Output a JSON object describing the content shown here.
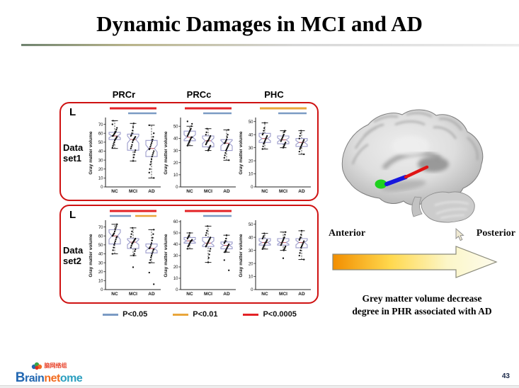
{
  "slide": {
    "title": "Dynamic Damages in MCI and AD",
    "page_number": "43"
  },
  "column_headers": [
    "PRCr",
    "PRCc",
    "PHC"
  ],
  "colors": {
    "sig_red": "#e32226",
    "sig_blue": "#7b9bc4",
    "sig_orange": "#e9a63b",
    "box_outline": "#9b9bcb",
    "median": "#c46a74",
    "panel_border": "#cf1212"
  },
  "legend": [
    {
      "label": "P<0.05",
      "color_key": "sig_blue"
    },
    {
      "label": "P<0.01",
      "color_key": "sig_orange"
    },
    {
      "label": "P<0.0005",
      "color_key": "sig_red"
    }
  ],
  "right_panel": {
    "anterior_label": "Anterior",
    "posterior_label": "Posterior",
    "caption_line1": "Grey matter volume decrease",
    "caption_line2": "degree in PHR associated with AD"
  },
  "logo": {
    "brain": "Brain",
    "net": "net",
    "ome": "ome",
    "chinese": "脑网络组"
  },
  "chart_data": {
    "type": "boxplot-grid",
    "ylabel": "Gray matter volume",
    "categories": [
      "NC",
      "MCI",
      "AD"
    ],
    "rows": [
      {
        "corner": "L",
        "label_line1": "Data",
        "label_line2": "set1",
        "plots": [
          {
            "region": "PRCr",
            "ylim": [
              0,
              76
            ],
            "yticks": [
              0,
              10,
              20,
              30,
              40,
              50,
              60,
              70
            ],
            "sig": [
              {
                "color": "sig_red",
                "from": 0,
                "to": 2,
                "level": 0
              },
              {
                "color": "sig_blue",
                "from": 1,
                "to": 2,
                "level": 1
              }
            ],
            "groups": [
              {
                "label": "NC",
                "whisker_low": 43,
                "q1": 53,
                "median": 57,
                "q3": 61,
                "whisker_high": 74,
                "points": [
                  44,
                  46,
                  48,
                  50,
                  52,
                  53,
                  54,
                  55,
                  56,
                  57,
                  57,
                  58,
                  59,
                  60,
                  61,
                  62,
                  64,
                  66,
                  70,
                  74
                ]
              },
              {
                "label": "MCI",
                "whisker_low": 29,
                "q1": 41,
                "median": 53,
                "q3": 59,
                "whisker_high": 71,
                "points": [
                  29,
                  33,
                  36,
                  39,
                  41,
                  43,
                  45,
                  47,
                  50,
                  52,
                  53,
                  54,
                  55,
                  56,
                  57,
                  58,
                  60,
                  63,
                  67,
                  71
                ]
              },
              {
                "label": "AD",
                "whisker_low": 10,
                "q1": 34,
                "median": 43,
                "q3": 52,
                "whisker_high": 69,
                "points": [
                  10,
                  16,
                  20,
                  25,
                  28,
                  31,
                  34,
                  36,
                  38,
                  40,
                  42,
                  43,
                  45,
                  47,
                  49,
                  51,
                  53,
                  56,
                  60,
                  69
                ]
              }
            ]
          },
          {
            "region": "PRCc",
            "ylim": [
              0,
              56
            ],
            "yticks": [
              0,
              10,
              20,
              30,
              40,
              50
            ],
            "sig": [
              {
                "color": "sig_red",
                "from": 0,
                "to": 2,
                "level": 0
              },
              {
                "color": "sig_blue",
                "from": 1,
                "to": 2,
                "level": 1
              }
            ],
            "groups": [
              {
                "label": "NC",
                "whisker_low": 34,
                "q1": 38,
                "median": 41,
                "q3": 46,
                "whisker_high": 50,
                "points": [
                  34,
                  35,
                  36,
                  37,
                  38,
                  39,
                  40,
                  41,
                  41,
                  42,
                  43,
                  44,
                  45,
                  46,
                  47,
                  48,
                  50,
                  52,
                  54
                ]
              },
              {
                "label": "MCI",
                "whisker_low": 30,
                "q1": 33,
                "median": 38,
                "q3": 42,
                "whisker_high": 48,
                "points": [
                  30,
                  31,
                  32,
                  33,
                  34,
                  35,
                  36,
                  37,
                  38,
                  38,
                  39,
                  40,
                  41,
                  42,
                  43,
                  45,
                  48
                ]
              },
              {
                "label": "AD",
                "whisker_low": 22,
                "q1": 30,
                "median": 36,
                "q3": 39,
                "whisker_high": 47,
                "points": [
                  22,
                  24,
                  26,
                  28,
                  30,
                  31,
                  32,
                  33,
                  34,
                  35,
                  36,
                  36,
                  37,
                  38,
                  39,
                  41,
                  43,
                  47
                ]
              }
            ]
          },
          {
            "region": "PHC",
            "ylim": [
              0,
              52
            ],
            "yticks": [
              0,
              10,
              20,
              30,
              40,
              50
            ],
            "sig": [
              {
                "color": "sig_orange",
                "from": 0,
                "to": 2,
                "level": 0
              },
              {
                "color": "sig_blue",
                "from": 1,
                "to": 2,
                "level": 1
              }
            ],
            "groups": [
              {
                "label": "NC",
                "whisker_low": 29,
                "q1": 34,
                "median": 37,
                "q3": 41,
                "whisker_high": 49,
                "points": [
                  29,
                  31,
                  33,
                  34,
                  35,
                  36,
                  37,
                  38,
                  39,
                  40,
                  41,
                  43,
                  45,
                  49
                ]
              },
              {
                "label": "MCI",
                "whisker_low": 30,
                "q1": 33,
                "median": 36,
                "q3": 39,
                "whisker_high": 43,
                "points": [
                  30,
                  31,
                  32,
                  33,
                  34,
                  35,
                  36,
                  37,
                  38,
                  39,
                  40,
                  42,
                  43
                ]
              },
              {
                "label": "AD",
                "whisker_low": 25,
                "q1": 31,
                "median": 34,
                "q3": 37,
                "whisker_high": 43,
                "points": [
                  25,
                  27,
                  29,
                  30,
                  31,
                  32,
                  33,
                  34,
                  35,
                  36,
                  37,
                  39,
                  41,
                  43
                ]
              }
            ]
          }
        ]
      },
      {
        "corner": "L",
        "label_line1": "Data",
        "label_line2": "set2",
        "plots": [
          {
            "region": "PRCr",
            "ylim": [
              0,
              76
            ],
            "yticks": [
              0,
              10,
              20,
              30,
              40,
              50,
              60,
              70
            ],
            "sig": [
              {
                "color": "sig_red",
                "from": 0,
                "to": 2,
                "level": 0
              },
              {
                "color": "sig_blue",
                "from": 0,
                "to": 1,
                "level": 1,
                "trim_end": true
              },
              {
                "color": "sig_orange",
                "from": 1,
                "to": 2,
                "level": 1,
                "trim_start": true
              }
            ],
            "groups": [
              {
                "label": "NC",
                "whisker_low": 40,
                "q1": 51,
                "median": 60,
                "q3": 67,
                "whisker_high": 73,
                "points": [
                  40,
                  44,
                  47,
                  50,
                  52,
                  54,
                  56,
                  58,
                  59,
                  60,
                  61,
                  62,
                  63,
                  65,
                  67,
                  69,
                  71,
                  73
                ]
              },
              {
                "label": "MCI",
                "whisker_low": 38,
                "q1": 46,
                "median": 53,
                "q3": 57,
                "whisker_high": 69,
                "points": [
                  25,
                  38,
                  40,
                  43,
                  45,
                  47,
                  49,
                  51,
                  52,
                  53,
                  54,
                  55,
                  56,
                  57,
                  59,
                  62,
                  65,
                  69
                ]
              },
              {
                "label": "AD",
                "whisker_low": 30,
                "q1": 41,
                "median": 46,
                "q3": 51,
                "whisker_high": 67,
                "points": [
                  6,
                  19,
                  30,
                  33,
                  36,
                  38,
                  40,
                  42,
                  44,
                  45,
                  46,
                  47,
                  48,
                  50,
                  52,
                  55,
                  58,
                  62,
                  67
                ]
              }
            ]
          },
          {
            "region": "PRCc",
            "ylim": [
              0,
              60
            ],
            "yticks": [
              0,
              10,
              20,
              30,
              40,
              50,
              60
            ],
            "sig": [
              {
                "color": "sig_red",
                "from": 0,
                "to": 2,
                "level": 0
              },
              {
                "color": "sig_blue",
                "from": 1,
                "to": 2,
                "level": 1
              }
            ],
            "groups": [
              {
                "label": "NC",
                "whisker_low": 36,
                "q1": 41,
                "median": 43,
                "q3": 46,
                "whisker_high": 50,
                "points": [
                  36,
                  38,
                  39,
                  40,
                  41,
                  42,
                  43,
                  43,
                  44,
                  45,
                  46,
                  47,
                  48,
                  50
                ]
              },
              {
                "label": "MCI",
                "whisker_low": 24,
                "q1": 38,
                "median": 41,
                "q3": 46,
                "whisker_high": 56,
                "points": [
                  24,
                  28,
                  31,
                  34,
                  36,
                  38,
                  39,
                  40,
                  41,
                  42,
                  43,
                  44,
                  45,
                  46,
                  48,
                  50,
                  52,
                  56
                ]
              },
              {
                "label": "AD",
                "whisker_low": 33,
                "q1": 36,
                "median": 39,
                "q3": 42,
                "whisker_high": 48,
                "points": [
                  17,
                  26,
                  33,
                  34,
                  35,
                  36,
                  37,
                  38,
                  39,
                  40,
                  41,
                  42,
                  43,
                  45,
                  48
                ]
              }
            ]
          },
          {
            "region": "PHC",
            "ylim": [
              0,
              52
            ],
            "yticks": [
              0,
              10,
              20,
              30,
              40,
              50
            ],
            "sig": [],
            "groups": [
              {
                "label": "NC",
                "whisker_low": 31,
                "q1": 34,
                "median": 36,
                "q3": 39,
                "whisker_high": 43,
                "points": [
                  31,
                  32,
                  33,
                  34,
                  35,
                  36,
                  36,
                  37,
                  38,
                  39,
                  40,
                  41,
                  43
                ]
              },
              {
                "label": "MCI",
                "whisker_low": 30,
                "q1": 34,
                "median": 36,
                "q3": 39,
                "whisker_high": 44,
                "points": [
                  24,
                  30,
                  31,
                  32,
                  33,
                  34,
                  35,
                  36,
                  37,
                  38,
                  39,
                  40,
                  42,
                  44
                ]
              },
              {
                "label": "AD",
                "whisker_low": 23,
                "q1": 32,
                "median": 36,
                "q3": 39,
                "whisker_high": 45,
                "points": [
                  23,
                  26,
                  28,
                  30,
                  32,
                  33,
                  34,
                  35,
                  36,
                  37,
                  38,
                  39,
                  40,
                  42,
                  45
                ]
              }
            ]
          }
        ]
      }
    ]
  }
}
